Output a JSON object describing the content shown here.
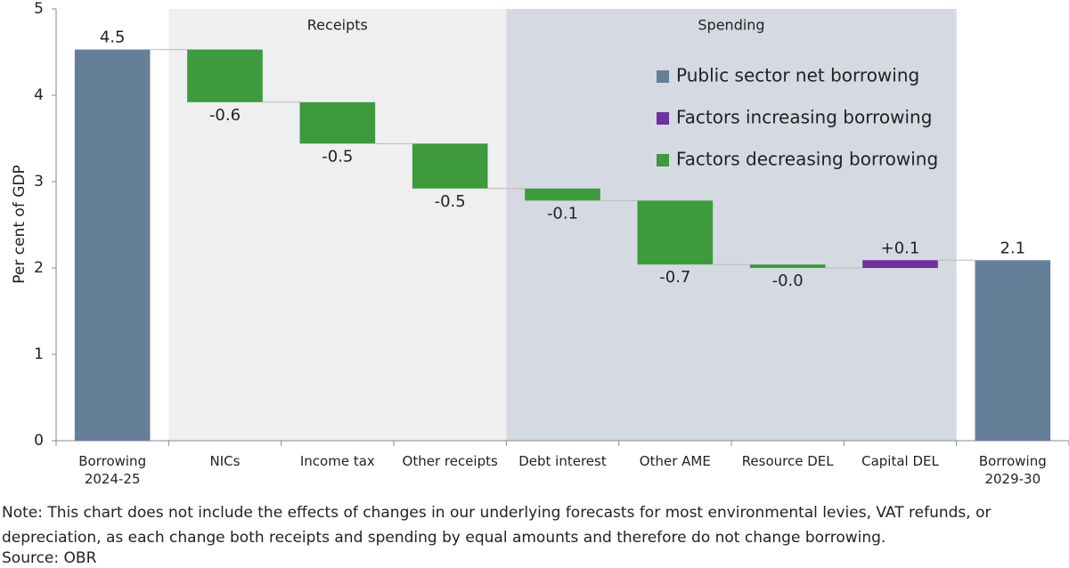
{
  "chart_data": {
    "type": "waterfall",
    "y_label": "Per cent of GDP",
    "categories": [
      "Borrowing\n2024-25",
      "NICs",
      "Income tax",
      "Other receipts",
      "Debt interest",
      "Other AME",
      "Resource DEL",
      "Capital DEL",
      "Borrowing\n2029-30"
    ],
    "series": [
      {
        "name": "Public sector net borrowing",
        "color": "#667f99",
        "values": [
          4.53,
          null,
          null,
          null,
          null,
          null,
          null,
          null,
          2.09
        ],
        "value_labels": [
          "4.5",
          null,
          null,
          null,
          null,
          null,
          null,
          null,
          "2.1"
        ]
      },
      {
        "name": "Factors increasing borrowing",
        "color": "#7030a0",
        "values": [
          null,
          null,
          null,
          null,
          null,
          null,
          null,
          0.09,
          null
        ],
        "value_labels": [
          null,
          null,
          null,
          null,
          null,
          null,
          null,
          "+0.1",
          null
        ]
      },
      {
        "name": "Factors decreasing borrowing",
        "color": "#3d9a3d",
        "values": [
          null,
          -0.61,
          -0.48,
          -0.52,
          -0.14,
          -0.74,
          -0.04,
          null,
          null
        ],
        "value_labels": [
          null,
          "-0.6",
          "-0.5",
          "-0.5",
          "-0.1",
          "-0.7",
          "-0.0",
          null,
          null
        ]
      }
    ],
    "regions": [
      {
        "label": "Receipts",
        "start": "NICs",
        "end": "Other receipts",
        "color": "#efeff2"
      },
      {
        "label": "Spending",
        "start": "Debt interest",
        "end": "Capital DEL",
        "color": "#d5d9e2"
      }
    ],
    "ylim": [
      0,
      5
    ],
    "yticks": [
      0,
      1,
      2,
      3,
      4,
      5
    ],
    "legend": "upper right",
    "note": "Note: This chart does not include the effects of changes in our underlying forecasts for most environmental levies, VAT refunds, or depreciation, as each change both receipts and spending by equal amounts and therefore do not change borrowing.",
    "source": "Source: OBR"
  }
}
